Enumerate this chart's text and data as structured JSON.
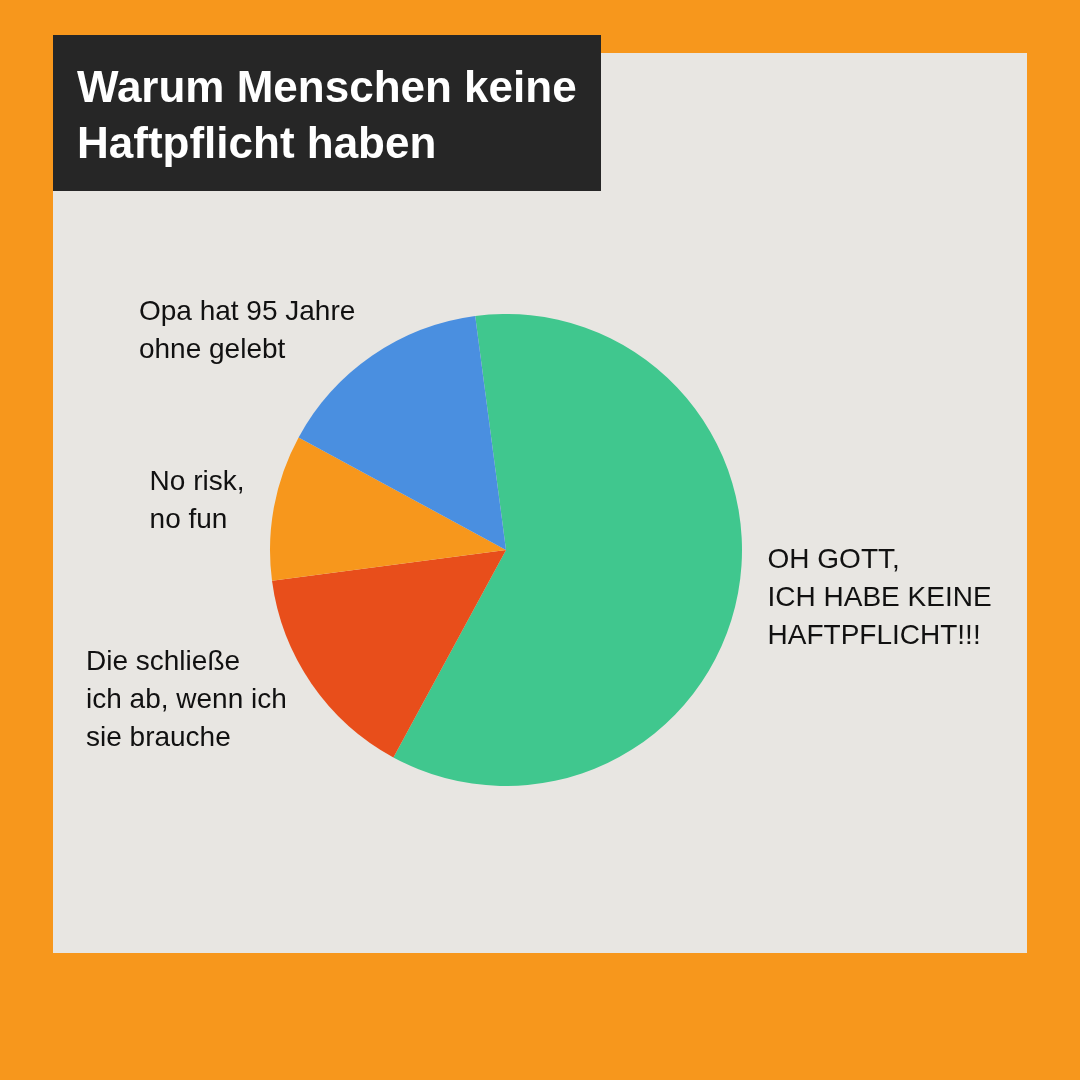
{
  "chart_data": {
    "type": "pie",
    "title": "Warum Menschen keine\nHaftpflicht haben",
    "categories": [
      "OH GOTT,\nICH HABE KEINE\nHAFTPFLICHT!!!",
      "Die schließe\nich ab, wenn ich\nsie brauche",
      "No risk,\nno fun",
      "Opa hat 95 Jahre\nohne gelebt"
    ],
    "values": [
      60,
      15,
      10,
      15
    ],
    "colors": [
      "#40c78e",
      "#e84e1b",
      "#f7971c",
      "#4a8fe0"
    ],
    "legend": false
  }
}
